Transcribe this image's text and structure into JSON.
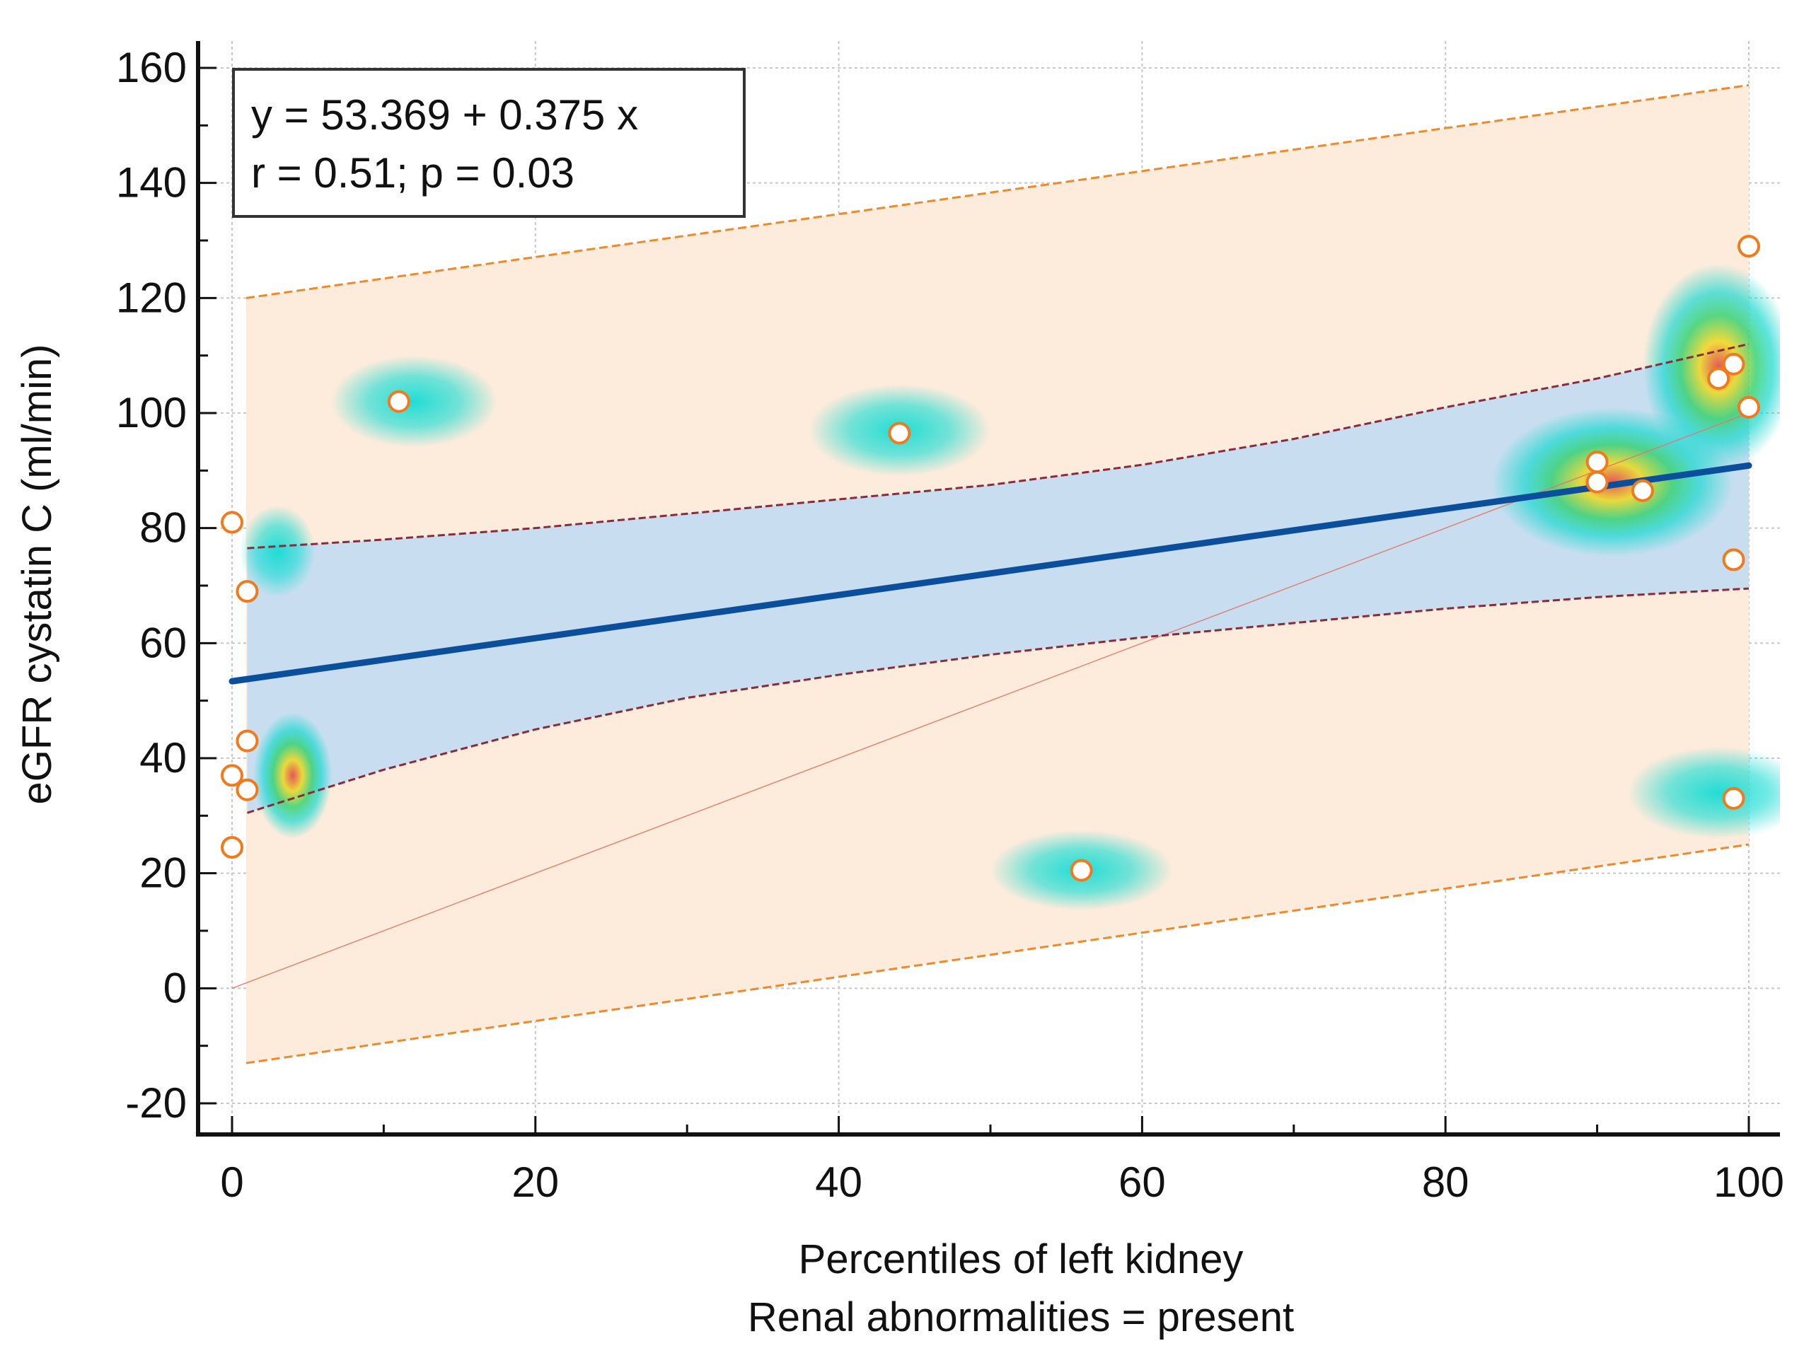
{
  "chart_data": {
    "type": "scatter",
    "title": "",
    "xlabel": "Percentiles of left kidney",
    "xlabel2": "Renal abnormalities = present",
    "ylabel": "eGFR cystatin C (ml/min)",
    "xlim": [
      0,
      100
    ],
    "ylim": [
      -20,
      160
    ],
    "xticks": [
      0,
      20,
      40,
      60,
      80,
      100
    ],
    "yticks": [
      -20,
      0,
      20,
      40,
      60,
      80,
      100,
      120,
      140,
      160
    ],
    "grid": true,
    "annotation": {
      "equation": "y = 53.369 + 0.375 x",
      "stats": "r = 0.51; p = 0.03"
    },
    "regression": {
      "intercept": 53.369,
      "slope": 0.375
    },
    "confidence_band": {
      "x": [
        1,
        10,
        20,
        30,
        40,
        50,
        60,
        70,
        80,
        90,
        100
      ],
      "lower": [
        30.5,
        38,
        45,
        50.5,
        54.5,
        58,
        61,
        63.5,
        66,
        68,
        69.5
      ],
      "upper": [
        76.5,
        78,
        80,
        82.5,
        85,
        87.5,
        91,
        95.5,
        101,
        106,
        112
      ]
    },
    "prediction_band": {
      "x": [
        0,
        100
      ],
      "lower": [
        -13,
        25
      ],
      "upper": [
        120,
        157
      ]
    },
    "identity_line": true,
    "points": [
      {
        "x": 0,
        "y": 81
      },
      {
        "x": 1,
        "y": 69
      },
      {
        "x": 1,
        "y": 43
      },
      {
        "x": 0,
        "y": 37
      },
      {
        "x": 1,
        "y": 34.5
      },
      {
        "x": 0,
        "y": 24.5
      },
      {
        "x": 11,
        "y": 102
      },
      {
        "x": 44,
        "y": 96.5
      },
      {
        "x": 56,
        "y": 20.5
      },
      {
        "x": 90,
        "y": 91.5
      },
      {
        "x": 90,
        "y": 88
      },
      {
        "x": 93,
        "y": 86.5
      },
      {
        "x": 98,
        "y": 106
      },
      {
        "x": 99,
        "y": 108.5
      },
      {
        "x": 100,
        "y": 129
      },
      {
        "x": 100,
        "y": 101
      },
      {
        "x": 99,
        "y": 74.5
      },
      {
        "x": 99,
        "y": 33
      }
    ],
    "colors": {
      "regression": "#0b4f9c",
      "confidence_fill": "#c5ddf0",
      "confidence_line": "#8a2b3a",
      "prediction_fill": "#fdecdc",
      "prediction_line": "#f0892a",
      "identity_line": "#e07a6a",
      "point_stroke": "#f07a1c",
      "point_fill": "#ffffff",
      "grid": "#c8c8c8",
      "axis": "#111111"
    }
  }
}
